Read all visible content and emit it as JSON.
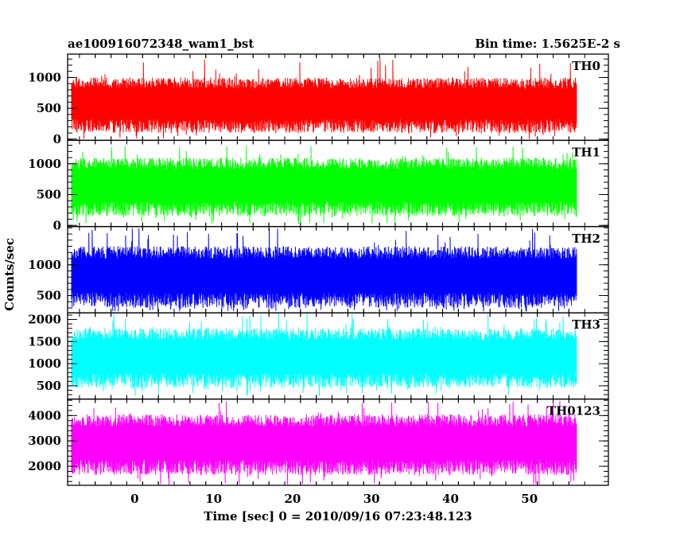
{
  "header": {
    "left_title": "ae100916072348_wam1_bst",
    "right_title": "Bin time: 1.5625E-2 s"
  },
  "chart_data": {
    "type": "line",
    "ylabel": "Counts/sec",
    "xlabel": "Time [sec] 0 = 2010/09/16 07:23:48.123",
    "xlim": [
      -8.5,
      60
    ],
    "data_x_range": [
      -8,
      56
    ],
    "bin_time": 0.015625,
    "x_ticks": [
      0,
      10,
      20,
      30,
      40,
      50
    ],
    "grid": false,
    "panels": [
      {
        "name": "TH0",
        "color": "#ff0000",
        "ylim": [
          -20,
          1380
        ],
        "y_ticks": [
          0,
          500,
          1000
        ],
        "typical_range": [
          100,
          1000
        ],
        "envelope_min": 0,
        "envelope_max": 1340
      },
      {
        "name": "TH1",
        "color": "#00ff00",
        "ylim": [
          -20,
          1380
        ],
        "y_ticks": [
          0,
          500,
          1000
        ],
        "typical_range": [
          150,
          1100
        ],
        "envelope_min": 20,
        "envelope_max": 1300
      },
      {
        "name": "TH2",
        "color": "#0000ff",
        "ylim": [
          220,
          1620
        ],
        "y_ticks": [
          500,
          1000
        ],
        "typical_range": [
          300,
          1300
        ],
        "envelope_min": 240,
        "envelope_max": 1600
      },
      {
        "name": "TH3",
        "color": "#00ffff",
        "ylim": [
          200,
          2150
        ],
        "y_ticks": [
          500,
          1000,
          1500,
          2000
        ],
        "typical_range": [
          450,
          1800
        ],
        "envelope_min": 260,
        "envelope_max": 2150
      },
      {
        "name": "TH0123",
        "color": "#ff00ff",
        "ylim": [
          1250,
          4650
        ],
        "y_ticks": [
          2000,
          3000,
          4000
        ],
        "typical_range": [
          1650,
          4050
        ],
        "envelope_min": 1250,
        "envelope_max": 4600
      }
    ]
  }
}
